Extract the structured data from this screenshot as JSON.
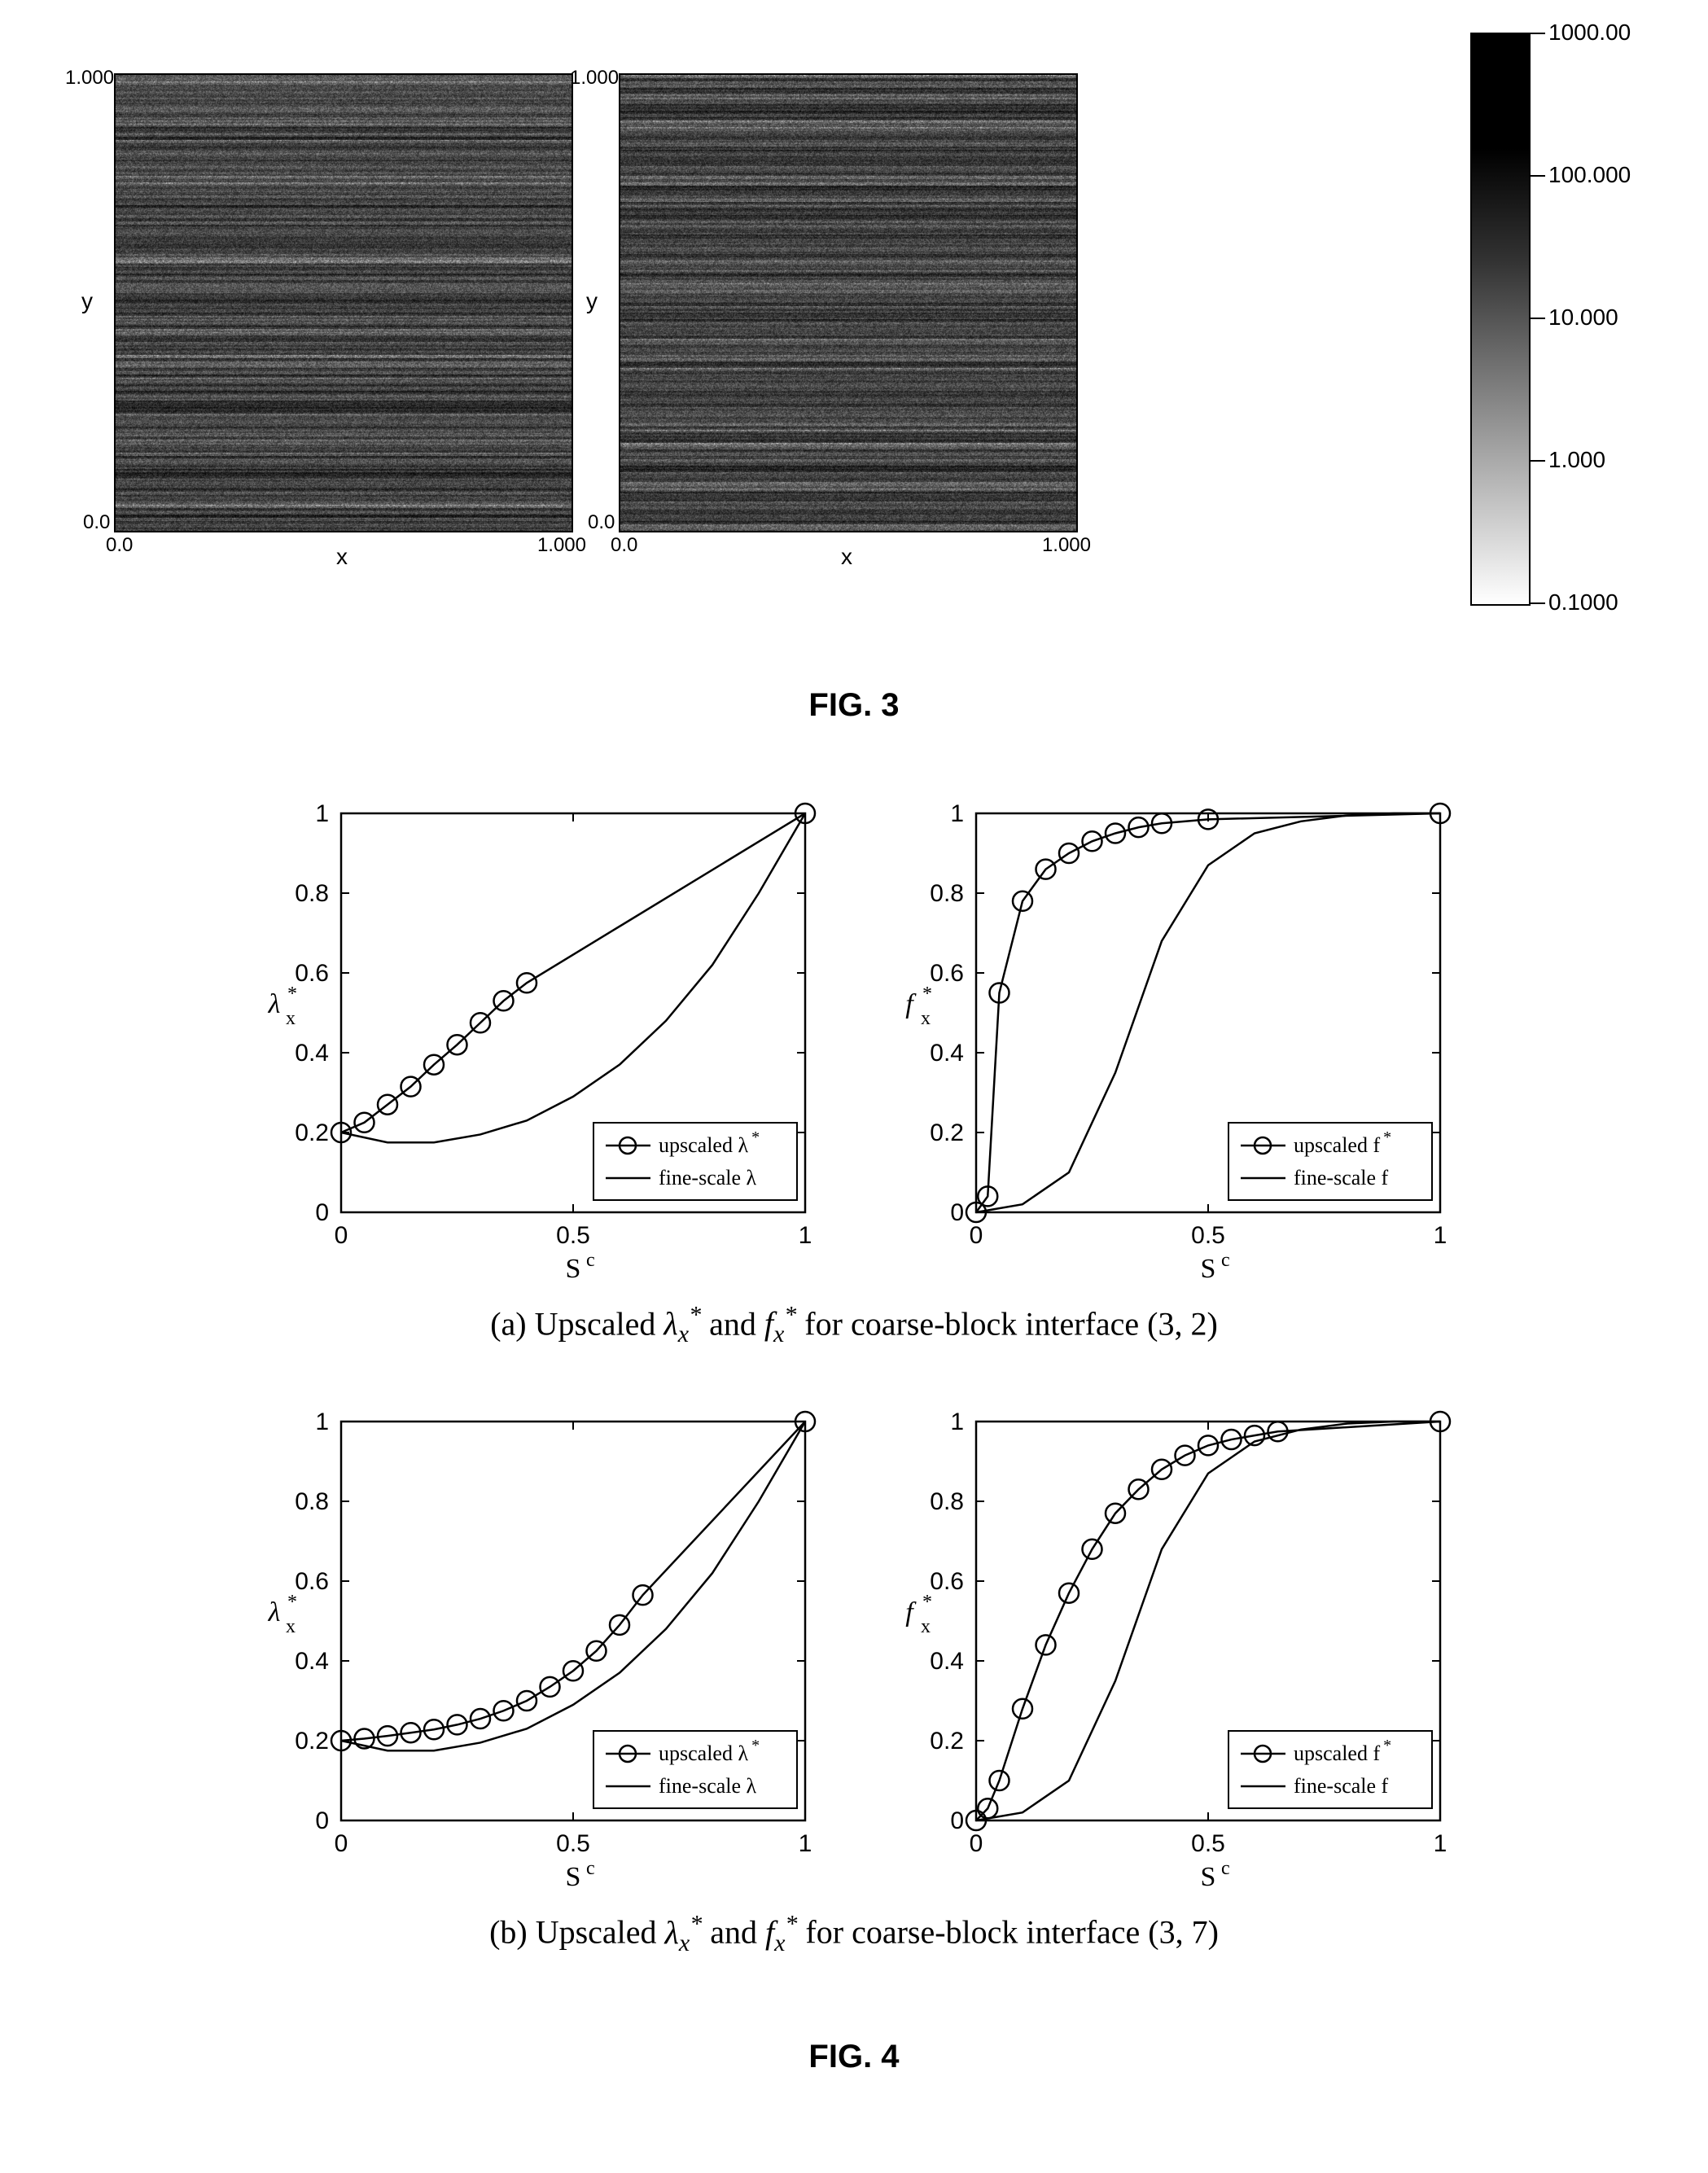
{
  "fig3": {
    "heatmaps": {
      "xlabel": "x",
      "ylabel": "y",
      "tick_min": "0.0",
      "tick_max_y": "1.000",
      "tick_max_x": "1.000",
      "axis_fontsize": 28
    },
    "colorbar": {
      "labels": [
        "1000.00",
        "100.000",
        "10.000",
        "1.000",
        "0.1000"
      ],
      "positions": [
        0,
        0.25,
        0.5,
        0.75,
        1.0
      ]
    },
    "title": "FIG. 3"
  },
  "fig4": {
    "a": {
      "caption_prefix": "(a) Upscaled ",
      "caption_mid": " and ",
      "caption_suffix": " for coarse-block interface (3, 2)",
      "lambda_chart": {
        "type": "line",
        "ylabel_symbol": "λ",
        "ylabel_sup": "*",
        "ylabel_sub": "x",
        "xlabel_main": "S",
        "xlabel_sup": "c",
        "ylim": [
          0,
          1
        ],
        "xlim": [
          0,
          1
        ],
        "yticks": [
          0,
          0.2,
          0.4,
          0.6,
          0.8,
          1
        ],
        "xticks": [
          0,
          0.5,
          1
        ],
        "line_color": "#000000",
        "line_width": 2.5,
        "marker_size": 12,
        "upscaled": {
          "x": [
            0.0,
            0.05,
            0.1,
            0.15,
            0.2,
            0.25,
            0.3,
            0.35,
            0.4,
            1.0
          ],
          "y": [
            0.2,
            0.225,
            0.27,
            0.315,
            0.37,
            0.42,
            0.475,
            0.53,
            0.575,
            1.0
          ],
          "markers": true
        },
        "fine": {
          "x": [
            0.0,
            0.1,
            0.2,
            0.3,
            0.4,
            0.5,
            0.6,
            0.7,
            0.8,
            0.9,
            1.0
          ],
          "y": [
            0.2,
            0.175,
            0.175,
            0.195,
            0.23,
            0.29,
            0.37,
            0.48,
            0.62,
            0.8,
            1.0
          ],
          "markers": false
        },
        "legend": {
          "upscaled_text": "upscaled  λ",
          "upscaled_sup": "*",
          "fine_text": "fine-scale  λ"
        }
      },
      "f_chart": {
        "type": "line",
        "ylabel_symbol": "f",
        "ylabel_sup": "*",
        "ylabel_sub": "x",
        "xlabel_main": "S",
        "xlabel_sup": "c",
        "ylim": [
          0,
          1
        ],
        "xlim": [
          0,
          1
        ],
        "yticks": [
          0,
          0.2,
          0.4,
          0.6,
          0.8,
          1
        ],
        "xticks": [
          0,
          0.5,
          1
        ],
        "line_color": "#000000",
        "line_width": 2.5,
        "marker_size": 12,
        "upscaled": {
          "x": [
            0.0,
            0.025,
            0.05,
            0.1,
            0.15,
            0.2,
            0.25,
            0.3,
            0.35,
            0.4,
            0.5,
            1.0
          ],
          "y": [
            0.0,
            0.04,
            0.55,
            0.78,
            0.86,
            0.9,
            0.93,
            0.95,
            0.965,
            0.975,
            0.985,
            1.0
          ],
          "markers": true
        },
        "fine": {
          "x": [
            0.0,
            0.1,
            0.2,
            0.3,
            0.4,
            0.5,
            0.6,
            0.7,
            0.8,
            0.9,
            1.0
          ],
          "y": [
            0.0,
            0.02,
            0.1,
            0.35,
            0.68,
            0.87,
            0.95,
            0.98,
            0.995,
            1.0,
            1.0
          ],
          "markers": false
        },
        "legend": {
          "upscaled_text": "upscaled  f",
          "upscaled_sup": "*",
          "fine_text": "fine-scale  f"
        }
      }
    },
    "b": {
      "caption_prefix": "(b) Upscaled ",
      "caption_mid": " and ",
      "caption_suffix": " for coarse-block interface (3, 7)",
      "lambda_chart": {
        "type": "line",
        "ylabel_symbol": "λ",
        "ylabel_sup": "*",
        "ylabel_sub": "x",
        "xlabel_main": "S",
        "xlabel_sup": "c",
        "ylim": [
          0,
          1
        ],
        "xlim": [
          0,
          1
        ],
        "yticks": [
          0,
          0.2,
          0.4,
          0.6,
          0.8,
          1
        ],
        "xticks": [
          0,
          0.5,
          1
        ],
        "line_color": "#000000",
        "line_width": 2.5,
        "marker_size": 12,
        "upscaled": {
          "x": [
            0.0,
            0.05,
            0.1,
            0.15,
            0.2,
            0.25,
            0.3,
            0.35,
            0.4,
            0.45,
            0.5,
            0.55,
            0.6,
            0.65,
            1.0
          ],
          "y": [
            0.2,
            0.205,
            0.212,
            0.22,
            0.228,
            0.24,
            0.255,
            0.275,
            0.3,
            0.335,
            0.375,
            0.425,
            0.49,
            0.565,
            1.0
          ],
          "markers": true
        },
        "fine": {
          "x": [
            0.0,
            0.1,
            0.2,
            0.3,
            0.4,
            0.5,
            0.6,
            0.7,
            0.8,
            0.9,
            1.0
          ],
          "y": [
            0.2,
            0.175,
            0.175,
            0.195,
            0.23,
            0.29,
            0.37,
            0.48,
            0.62,
            0.8,
            1.0
          ],
          "markers": false
        },
        "legend": {
          "upscaled_text": "upscaled  λ",
          "upscaled_sup": "*",
          "fine_text": "fine-scale  λ"
        }
      },
      "f_chart": {
        "type": "line",
        "ylabel_symbol": "f",
        "ylabel_sup": "*",
        "ylabel_sub": "x",
        "xlabel_main": "S",
        "xlabel_sup": "c",
        "ylim": [
          0,
          1
        ],
        "xlim": [
          0,
          1
        ],
        "yticks": [
          0,
          0.2,
          0.4,
          0.6,
          0.8,
          1
        ],
        "xticks": [
          0,
          0.5,
          1
        ],
        "line_color": "#000000",
        "line_width": 2.5,
        "marker_size": 12,
        "upscaled": {
          "x": [
            0.0,
            0.025,
            0.05,
            0.1,
            0.15,
            0.2,
            0.25,
            0.3,
            0.35,
            0.4,
            0.45,
            0.5,
            0.55,
            0.6,
            0.65,
            1.0
          ],
          "y": [
            0.0,
            0.03,
            0.1,
            0.28,
            0.44,
            0.57,
            0.68,
            0.77,
            0.83,
            0.88,
            0.915,
            0.94,
            0.955,
            0.965,
            0.975,
            1.0
          ],
          "markers": true
        },
        "fine": {
          "x": [
            0.0,
            0.1,
            0.2,
            0.3,
            0.4,
            0.5,
            0.6,
            0.7,
            0.8,
            0.9,
            1.0
          ],
          "y": [
            0.0,
            0.02,
            0.1,
            0.35,
            0.68,
            0.87,
            0.95,
            0.98,
            0.995,
            1.0,
            1.0
          ],
          "markers": false
        },
        "legend": {
          "upscaled_text": "upscaled  f",
          "upscaled_sup": "*",
          "fine_text": "fine-scale  f"
        }
      }
    },
    "title": "FIG. 4"
  }
}
